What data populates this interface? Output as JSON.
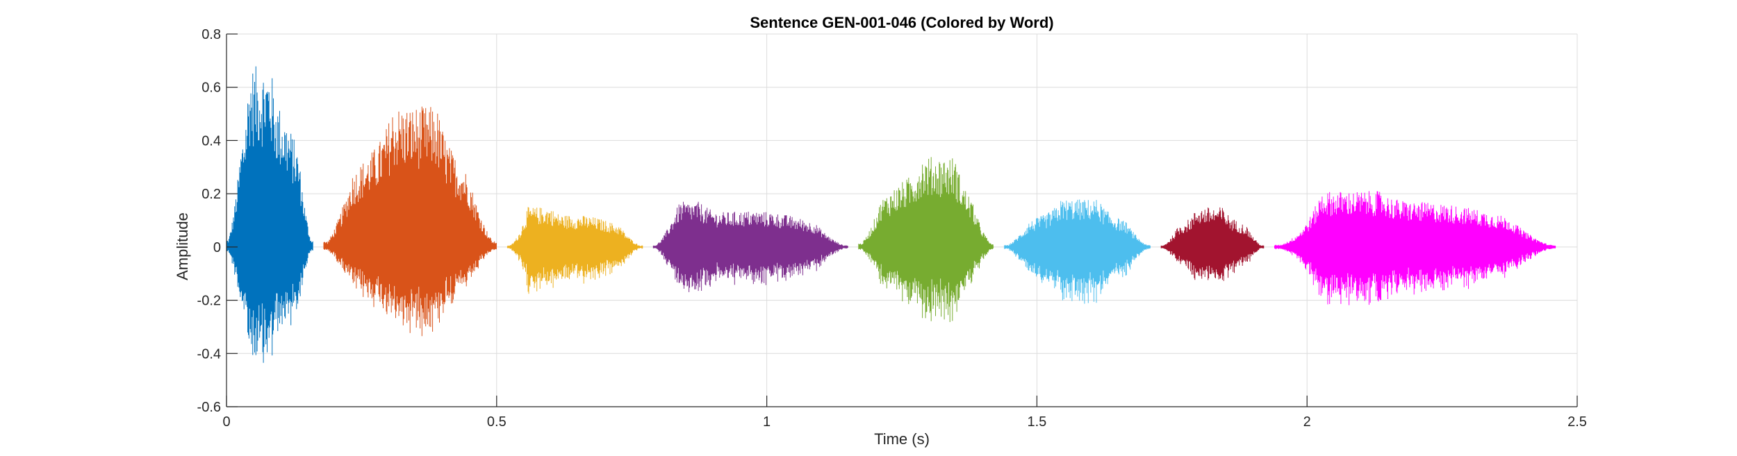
{
  "chart_data": {
    "type": "line",
    "title": "Sentence GEN-001-046 (Colored by Word)",
    "xlabel": "Time (s)",
    "ylabel": "Amplitude",
    "xlim": [
      0,
      2.5
    ],
    "ylim": [
      -0.6,
      0.8
    ],
    "xticks": [
      0,
      0.5,
      1,
      1.5,
      2,
      2.5
    ],
    "xtick_labels": [
      "0",
      "0.5",
      "1",
      "1.5",
      "2",
      "2.5"
    ],
    "yticks": [
      -0.6,
      -0.4,
      -0.2,
      0,
      0.2,
      0.4,
      0.6,
      0.8
    ],
    "ytick_labels": [
      "-0.6",
      "-0.4",
      "-0.2",
      "0",
      "0.2",
      "0.4",
      "0.6",
      "0.8"
    ],
    "grid": true,
    "legend": "none",
    "series": [
      {
        "color": "#0072BD",
        "start": 0.0,
        "end": 0.16,
        "max": 0.68,
        "min": -0.48,
        "peak_at": 0.06
      },
      {
        "color": "#D95319",
        "start": 0.18,
        "end": 0.5,
        "max": 0.53,
        "min": -0.34,
        "peak_at": 0.35
      },
      {
        "color": "#EDB120",
        "start": 0.52,
        "end": 0.77,
        "max": 0.15,
        "min": -0.18,
        "peak_at": 0.57
      },
      {
        "color": "#7E2F8E",
        "start": 0.79,
        "end": 1.15,
        "max": 0.17,
        "min": -0.19,
        "peak_at": 0.84
      },
      {
        "color": "#77AC30",
        "start": 1.17,
        "end": 1.42,
        "max": 0.34,
        "min": -0.3,
        "peak_at": 1.32
      },
      {
        "color": "#4DBEEE",
        "start": 1.44,
        "end": 1.71,
        "max": 0.18,
        "min": -0.22,
        "peak_at": 1.58
      },
      {
        "color": "#A2142F",
        "start": 1.73,
        "end": 1.92,
        "max": 0.15,
        "min": -0.15,
        "peak_at": 1.82
      },
      {
        "color": "#FF00FF",
        "start": 1.94,
        "end": 2.46,
        "max": 0.21,
        "min": -0.23,
        "peak_at": 2.07
      }
    ]
  }
}
